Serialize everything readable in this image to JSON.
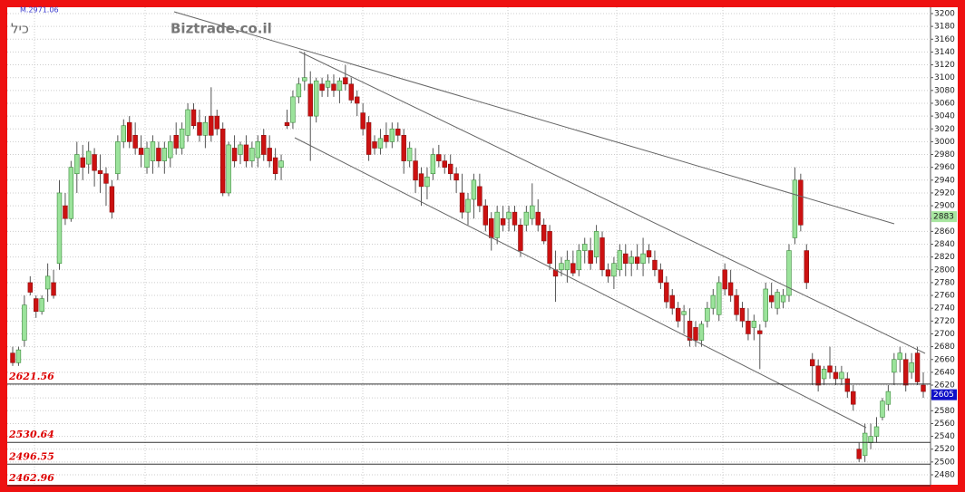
{
  "chart_data": {
    "type": "candlestick",
    "symbol": "כיל",
    "info_text": "M.2971.06",
    "watermark": "Biztrade.co.il",
    "up_color": "#9be39b",
    "down_color": "#cc1111",
    "ylim": [
      2480,
      3200
    ],
    "yticks": [
      2480,
      2500,
      2520,
      2540,
      2560,
      2580,
      2600,
      2620,
      2640,
      2660,
      2680,
      2700,
      2720,
      2740,
      2760,
      2780,
      2800,
      2820,
      2840,
      2860,
      2880,
      2900,
      2920,
      2940,
      2960,
      2980,
      3000,
      3020,
      3040,
      3060,
      3080,
      3100,
      3120,
      3140,
      3160,
      3180,
      3200
    ],
    "grid": true,
    "levels": [
      2621.56,
      2530.64,
      2496.55,
      2462.96
    ],
    "price_tags": [
      {
        "value": 2883,
        "color": "#a8e6a0"
      },
      {
        "value": 2605,
        "color": "#1010c8"
      }
    ],
    "ohlc": [
      [
        2670,
        2680,
        2650,
        2655
      ],
      [
        2655,
        2680,
        2650,
        2675
      ],
      [
        2690,
        2760,
        2680,
        2745
      ],
      [
        2780,
        2790,
        2760,
        2765
      ],
      [
        2755,
        2760,
        2725,
        2735
      ],
      [
        2735,
        2760,
        2730,
        2755
      ],
      [
        2770,
        2810,
        2750,
        2790
      ],
      [
        2780,
        2800,
        2755,
        2760
      ],
      [
        2810,
        2940,
        2800,
        2920
      ],
      [
        2900,
        2920,
        2870,
        2880
      ],
      [
        2880,
        2970,
        2875,
        2960
      ],
      [
        2950,
        3000,
        2920,
        2980
      ],
      [
        2975,
        2995,
        2940,
        2960
      ],
      [
        2965,
        3000,
        2950,
        2985
      ],
      [
        2980,
        2990,
        2930,
        2955
      ],
      [
        2955,
        2980,
        2920,
        2950
      ],
      [
        2950,
        2960,
        2900,
        2935
      ],
      [
        2930,
        2940,
        2880,
        2890
      ],
      [
        2950,
        3010,
        2940,
        3000
      ],
      [
        3000,
        3035,
        2990,
        3025
      ],
      [
        3030,
        3040,
        2990,
        3000
      ],
      [
        3010,
        3030,
        2980,
        2990
      ],
      [
        2990,
        3010,
        2960,
        2980
      ],
      [
        2960,
        3000,
        2950,
        2990
      ],
      [
        2970,
        3010,
        2950,
        3000
      ],
      [
        2990,
        3000,
        2960,
        2970
      ],
      [
        2970,
        3000,
        2950,
        2990
      ],
      [
        2975,
        3010,
        2960,
        3000
      ],
      [
        3010,
        3030,
        2980,
        2990
      ],
      [
        2990,
        3030,
        2980,
        3020
      ],
      [
        3010,
        3060,
        3000,
        3050
      ],
      [
        3050,
        3060,
        3020,
        3025
      ],
      [
        3030,
        3050,
        3000,
        3010
      ],
      [
        3010,
        3040,
        2990,
        3030
      ],
      [
        3040,
        3085,
        3000,
        3010
      ],
      [
        3040,
        3050,
        3010,
        3020
      ],
      [
        3020,
        3030,
        2915,
        2920
      ],
      [
        2920,
        3000,
        2915,
        2995
      ],
      [
        2990,
        3010,
        2960,
        2970
      ],
      [
        2980,
        3000,
        2965,
        2995
      ],
      [
        2995,
        3010,
        2960,
        2970
      ],
      [
        2970,
        3000,
        2960,
        2990
      ],
      [
        2975,
        3010,
        2960,
        3000
      ],
      [
        3010,
        3020,
        2970,
        2980
      ],
      [
        2990,
        3010,
        2960,
        2970
      ],
      [
        2975,
        2990,
        2940,
        2950
      ],
      [
        2960,
        2980,
        2940,
        2970
      ],
      [
        3030,
        3050,
        3020,
        3025
      ],
      [
        3030,
        3080,
        3020,
        3070
      ],
      [
        3070,
        3100,
        3060,
        3090
      ],
      [
        3095,
        3140,
        3080,
        3100
      ],
      [
        3090,
        3110,
        2970,
        3040
      ],
      [
        3040,
        3100,
        3030,
        3095
      ],
      [
        3090,
        3100,
        3070,
        3080
      ],
      [
        3085,
        3105,
        3070,
        3095
      ],
      [
        3090,
        3105,
        3070,
        3080
      ],
      [
        3080,
        3100,
        3060,
        3095
      ],
      [
        3100,
        3120,
        3080,
        3090
      ],
      [
        3090,
        3100,
        3060,
        3065
      ],
      [
        3070,
        3080,
        3040,
        3060
      ],
      [
        3045,
        3060,
        3010,
        3020
      ],
      [
        3030,
        3040,
        2970,
        2980
      ],
      [
        3000,
        3010,
        2980,
        2990
      ],
      [
        2990,
        3020,
        2980,
        3005
      ],
      [
        3010,
        3030,
        2990,
        3000
      ],
      [
        3000,
        3030,
        2990,
        3020
      ],
      [
        3020,
        3030,
        3000,
        3010
      ],
      [
        3010,
        3020,
        2950,
        2970
      ],
      [
        2970,
        3000,
        2960,
        2990
      ],
      [
        2970,
        2990,
        2920,
        2940
      ],
      [
        2950,
        2960,
        2900,
        2930
      ],
      [
        2930,
        2960,
        2910,
        2945
      ],
      [
        2950,
        2990,
        2940,
        2980
      ],
      [
        2980,
        2995,
        2960,
        2970
      ],
      [
        2970,
        2980,
        2950,
        2960
      ],
      [
        2965,
        2980,
        2940,
        2950
      ],
      [
        2950,
        2960,
        2920,
        2940
      ],
      [
        2920,
        2950,
        2880,
        2890
      ],
      [
        2890,
        2920,
        2870,
        2910
      ],
      [
        2910,
        2950,
        2880,
        2940
      ],
      [
        2930,
        2950,
        2890,
        2900
      ],
      [
        2900,
        2910,
        2860,
        2870
      ],
      [
        2880,
        2890,
        2830,
        2850
      ],
      [
        2850,
        2900,
        2840,
        2890
      ],
      [
        2880,
        2900,
        2860,
        2870
      ],
      [
        2880,
        2900,
        2860,
        2890
      ],
      [
        2890,
        2900,
        2860,
        2870
      ],
      [
        2870,
        2880,
        2820,
        2830
      ],
      [
        2870,
        2900,
        2860,
        2890
      ],
      [
        2880,
        2935,
        2870,
        2900
      ],
      [
        2890,
        2910,
        2860,
        2870
      ],
      [
        2870,
        2880,
        2840,
        2845
      ],
      [
        2860,
        2870,
        2800,
        2810
      ],
      [
        2800,
        2830,
        2750,
        2790
      ],
      [
        2800,
        2820,
        2790,
        2810
      ],
      [
        2800,
        2830,
        2780,
        2815
      ],
      [
        2810,
        2830,
        2790,
        2795
      ],
      [
        2800,
        2840,
        2790,
        2830
      ],
      [
        2830,
        2850,
        2810,
        2840
      ],
      [
        2830,
        2850,
        2800,
        2810
      ],
      [
        2820,
        2870,
        2810,
        2860
      ],
      [
        2850,
        2860,
        2790,
        2800
      ],
      [
        2800,
        2810,
        2780,
        2790
      ],
      [
        2790,
        2820,
        2770,
        2810
      ],
      [
        2800,
        2840,
        2790,
        2830
      ],
      [
        2825,
        2840,
        2790,
        2810
      ],
      [
        2810,
        2830,
        2790,
        2820
      ],
      [
        2820,
        2840,
        2800,
        2810
      ],
      [
        2810,
        2850,
        2790,
        2825
      ],
      [
        2830,
        2840,
        2810,
        2820
      ],
      [
        2815,
        2830,
        2790,
        2800
      ],
      [
        2800,
        2810,
        2770,
        2780
      ],
      [
        2780,
        2790,
        2740,
        2750
      ],
      [
        2760,
        2770,
        2730,
        2740
      ],
      [
        2740,
        2750,
        2710,
        2720
      ],
      [
        2730,
        2745,
        2700,
        2735
      ],
      [
        2720,
        2740,
        2680,
        2690
      ],
      [
        2710,
        2720,
        2680,
        2690
      ],
      [
        2690,
        2720,
        2680,
        2715
      ],
      [
        2720,
        2750,
        2710,
        2740
      ],
      [
        2740,
        2770,
        2730,
        2760
      ],
      [
        2730,
        2790,
        2720,
        2780
      ],
      [
        2800,
        2810,
        2760,
        2770
      ],
      [
        2780,
        2800,
        2750,
        2760
      ],
      [
        2760,
        2770,
        2720,
        2730
      ],
      [
        2740,
        2750,
        2710,
        2720
      ],
      [
        2720,
        2740,
        2690,
        2700
      ],
      [
        2710,
        2730,
        2690,
        2720
      ],
      [
        2705,
        2715,
        2645,
        2700
      ],
      [
        2720,
        2780,
        2710,
        2770
      ],
      [
        2760,
        2780,
        2740,
        2750
      ],
      [
        2740,
        2770,
        2730,
        2765
      ],
      [
        2750,
        2770,
        2740,
        2760
      ],
      [
        2760,
        2840,
        2750,
        2830
      ],
      [
        2850,
        2960,
        2840,
        2940
      ],
      [
        2940,
        2950,
        2860,
        2870
      ],
      [
        2830,
        2840,
        2770,
        2780
      ],
      [
        2660,
        2670,
        2620,
        2650
      ],
      [
        2650,
        2660,
        2610,
        2620
      ],
      [
        2630,
        2650,
        2620,
        2645
      ],
      [
        2650,
        2680,
        2630,
        2640
      ],
      [
        2640,
        2650,
        2620,
        2630
      ],
      [
        2630,
        2650,
        2620,
        2640
      ],
      [
        2630,
        2640,
        2600,
        2610
      ],
      [
        2610,
        2620,
        2580,
        2590
      ],
      [
        2520,
        2530,
        2500,
        2505
      ],
      [
        2510,
        2560,
        2500,
        2545
      ],
      [
        2530,
        2560,
        2520,
        2540
      ],
      [
        2540,
        2570,
        2530,
        2555
      ],
      [
        2570,
        2600,
        2565,
        2595
      ],
      [
        2590,
        2620,
        2580,
        2610
      ],
      [
        2640,
        2670,
        2620,
        2660
      ],
      [
        2660,
        2680,
        2640,
        2670
      ],
      [
        2660,
        2670,
        2610,
        2620
      ],
      [
        2640,
        2670,
        2630,
        2655
      ],
      [
        2670,
        2680,
        2620,
        2625
      ],
      [
        2620,
        2640,
        2600,
        2610
      ]
    ]
  }
}
